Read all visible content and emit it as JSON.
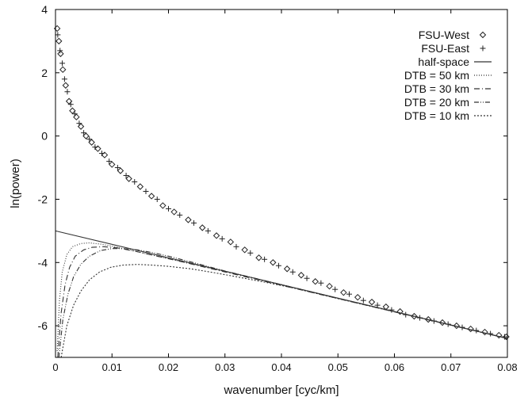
{
  "chart_data": {
    "type": "scatter",
    "title": "",
    "xlabel": "wavenumber [cyc/km]",
    "ylabel": "ln(power)",
    "xlim": [
      0,
      0.08
    ],
    "ylim": [
      -7,
      4
    ],
    "xticks": [
      0,
      0.01,
      0.02,
      0.03,
      0.04,
      0.05,
      0.06,
      0.07,
      0.08
    ],
    "xtick_labels": [
      "0",
      "0.01",
      "0.02",
      "0.03",
      "0.04",
      "0.05",
      "0.06",
      "0.07",
      "0.08"
    ],
    "yticks": [
      -6,
      -4,
      -2,
      0,
      2,
      4
    ],
    "ytick_labels": [
      "-6",
      "-4",
      "-2",
      "0",
      "2",
      "4"
    ],
    "grid": false,
    "legend_position": "top-right",
    "series": [
      {
        "name": "FSU-West",
        "kind": "points",
        "marker": "diamond",
        "x": [
          0.0003,
          0.0006,
          0.0009,
          0.0013,
          0.0018,
          0.0024,
          0.003,
          0.0037,
          0.0045,
          0.0054,
          0.0064,
          0.0075,
          0.0087,
          0.01,
          0.0115,
          0.013,
          0.015,
          0.017,
          0.019,
          0.021,
          0.0235,
          0.026,
          0.0285,
          0.031,
          0.0335,
          0.036,
          0.0385,
          0.041,
          0.0435,
          0.046,
          0.0485,
          0.051,
          0.0535,
          0.056,
          0.0585,
          0.061,
          0.0635,
          0.066,
          0.0685,
          0.071,
          0.0735,
          0.076,
          0.0785,
          0.0798
        ],
        "y": [
          3.4,
          3.0,
          2.6,
          2.1,
          1.6,
          1.1,
          0.8,
          0.6,
          0.3,
          0.0,
          -0.2,
          -0.4,
          -0.6,
          -0.9,
          -1.1,
          -1.35,
          -1.6,
          -1.9,
          -2.2,
          -2.4,
          -2.65,
          -2.9,
          -3.15,
          -3.35,
          -3.6,
          -3.85,
          -4.0,
          -4.2,
          -4.4,
          -4.6,
          -4.75,
          -4.95,
          -5.1,
          -5.25,
          -5.4,
          -5.55,
          -5.7,
          -5.8,
          -5.9,
          -6.0,
          -6.1,
          -6.2,
          -6.3,
          -6.35
        ]
      },
      {
        "name": "FSU-East",
        "kind": "points",
        "marker": "plus",
        "x": [
          0.0004,
          0.0008,
          0.0012,
          0.0016,
          0.0021,
          0.0027,
          0.0034,
          0.0042,
          0.005,
          0.006,
          0.007,
          0.0082,
          0.0095,
          0.011,
          0.0125,
          0.014,
          0.016,
          0.018,
          0.02,
          0.022,
          0.0245,
          0.027,
          0.0295,
          0.032,
          0.0345,
          0.037,
          0.0395,
          0.042,
          0.0445,
          0.047,
          0.0495,
          0.052,
          0.0545,
          0.057,
          0.0595,
          0.062,
          0.0645,
          0.067,
          0.0695,
          0.072,
          0.0745,
          0.077,
          0.0795
        ],
        "y": [
          3.2,
          2.7,
          2.3,
          1.8,
          1.4,
          1.0,
          0.7,
          0.4,
          0.1,
          -0.1,
          -0.35,
          -0.55,
          -0.8,
          -1.0,
          -1.25,
          -1.45,
          -1.75,
          -2.0,
          -2.3,
          -2.5,
          -2.75,
          -3.0,
          -3.25,
          -3.5,
          -3.7,
          -3.9,
          -4.1,
          -4.3,
          -4.5,
          -4.65,
          -4.85,
          -5.0,
          -5.2,
          -5.35,
          -5.5,
          -5.65,
          -5.75,
          -5.85,
          -5.95,
          -6.05,
          -6.15,
          -6.25,
          -6.35
        ]
      },
      {
        "name": "half-space",
        "kind": "line",
        "dash": "",
        "x": [
          0,
          0.08
        ],
        "y": [
          -3.0,
          -6.4
        ]
      },
      {
        "name": "DTB = 50 km",
        "kind": "line",
        "dash": "1,2",
        "x": [
          0.0003,
          0.0007,
          0.0012,
          0.002,
          0.003,
          0.0045,
          0.006,
          0.008,
          0.01,
          0.013,
          0.016,
          0.02,
          0.03,
          0.04,
          0.05,
          0.06,
          0.07,
          0.08
        ],
        "y": [
          -6.8,
          -5.2,
          -4.3,
          -3.75,
          -3.5,
          -3.4,
          -3.38,
          -3.42,
          -3.48,
          -3.6,
          -3.72,
          -3.88,
          -4.28,
          -4.7,
          -5.13,
          -5.55,
          -5.97,
          -6.4
        ]
      },
      {
        "name": "DTB = 30 km",
        "kind": "line",
        "dash": "7,3,1,3",
        "x": [
          0.0004,
          0.001,
          0.0017,
          0.0025,
          0.0035,
          0.005,
          0.0065,
          0.0085,
          0.011,
          0.014,
          0.018,
          0.022,
          0.03,
          0.04,
          0.05,
          0.06,
          0.07,
          0.08
        ],
        "y": [
          -7.0,
          -5.6,
          -4.7,
          -4.15,
          -3.8,
          -3.6,
          -3.52,
          -3.5,
          -3.54,
          -3.64,
          -3.8,
          -3.96,
          -4.3,
          -4.72,
          -5.14,
          -5.56,
          -5.98,
          -6.4
        ]
      },
      {
        "name": "DTB = 20 km",
        "kind": "line",
        "dash": "6,2,1,2,1,2",
        "x": [
          0.0006,
          0.0013,
          0.0022,
          0.0032,
          0.0045,
          0.006,
          0.008,
          0.01,
          0.012,
          0.0145,
          0.017,
          0.02,
          0.025,
          0.03,
          0.04,
          0.05,
          0.06,
          0.07,
          0.08
        ],
        "y": [
          -7.0,
          -5.8,
          -5.0,
          -4.45,
          -4.05,
          -3.8,
          -3.62,
          -3.56,
          -3.56,
          -3.6,
          -3.68,
          -3.8,
          -4.03,
          -4.27,
          -4.7,
          -5.13,
          -5.56,
          -5.98,
          -6.4
        ]
      },
      {
        "name": "DTB = 10 km",
        "kind": "line",
        "dash": "2,2",
        "x": [
          0.001,
          0.002,
          0.0032,
          0.0045,
          0.006,
          0.0078,
          0.0098,
          0.012,
          0.0145,
          0.017,
          0.02,
          0.024,
          0.028,
          0.032,
          0.037,
          0.042,
          0.05,
          0.06,
          0.07,
          0.08
        ],
        "y": [
          -7.0,
          -6.0,
          -5.35,
          -4.9,
          -4.55,
          -4.3,
          -4.15,
          -4.08,
          -4.06,
          -4.08,
          -4.12,
          -4.2,
          -4.32,
          -4.45,
          -4.62,
          -4.8,
          -5.14,
          -5.56,
          -5.98,
          -6.4
        ]
      }
    ]
  }
}
